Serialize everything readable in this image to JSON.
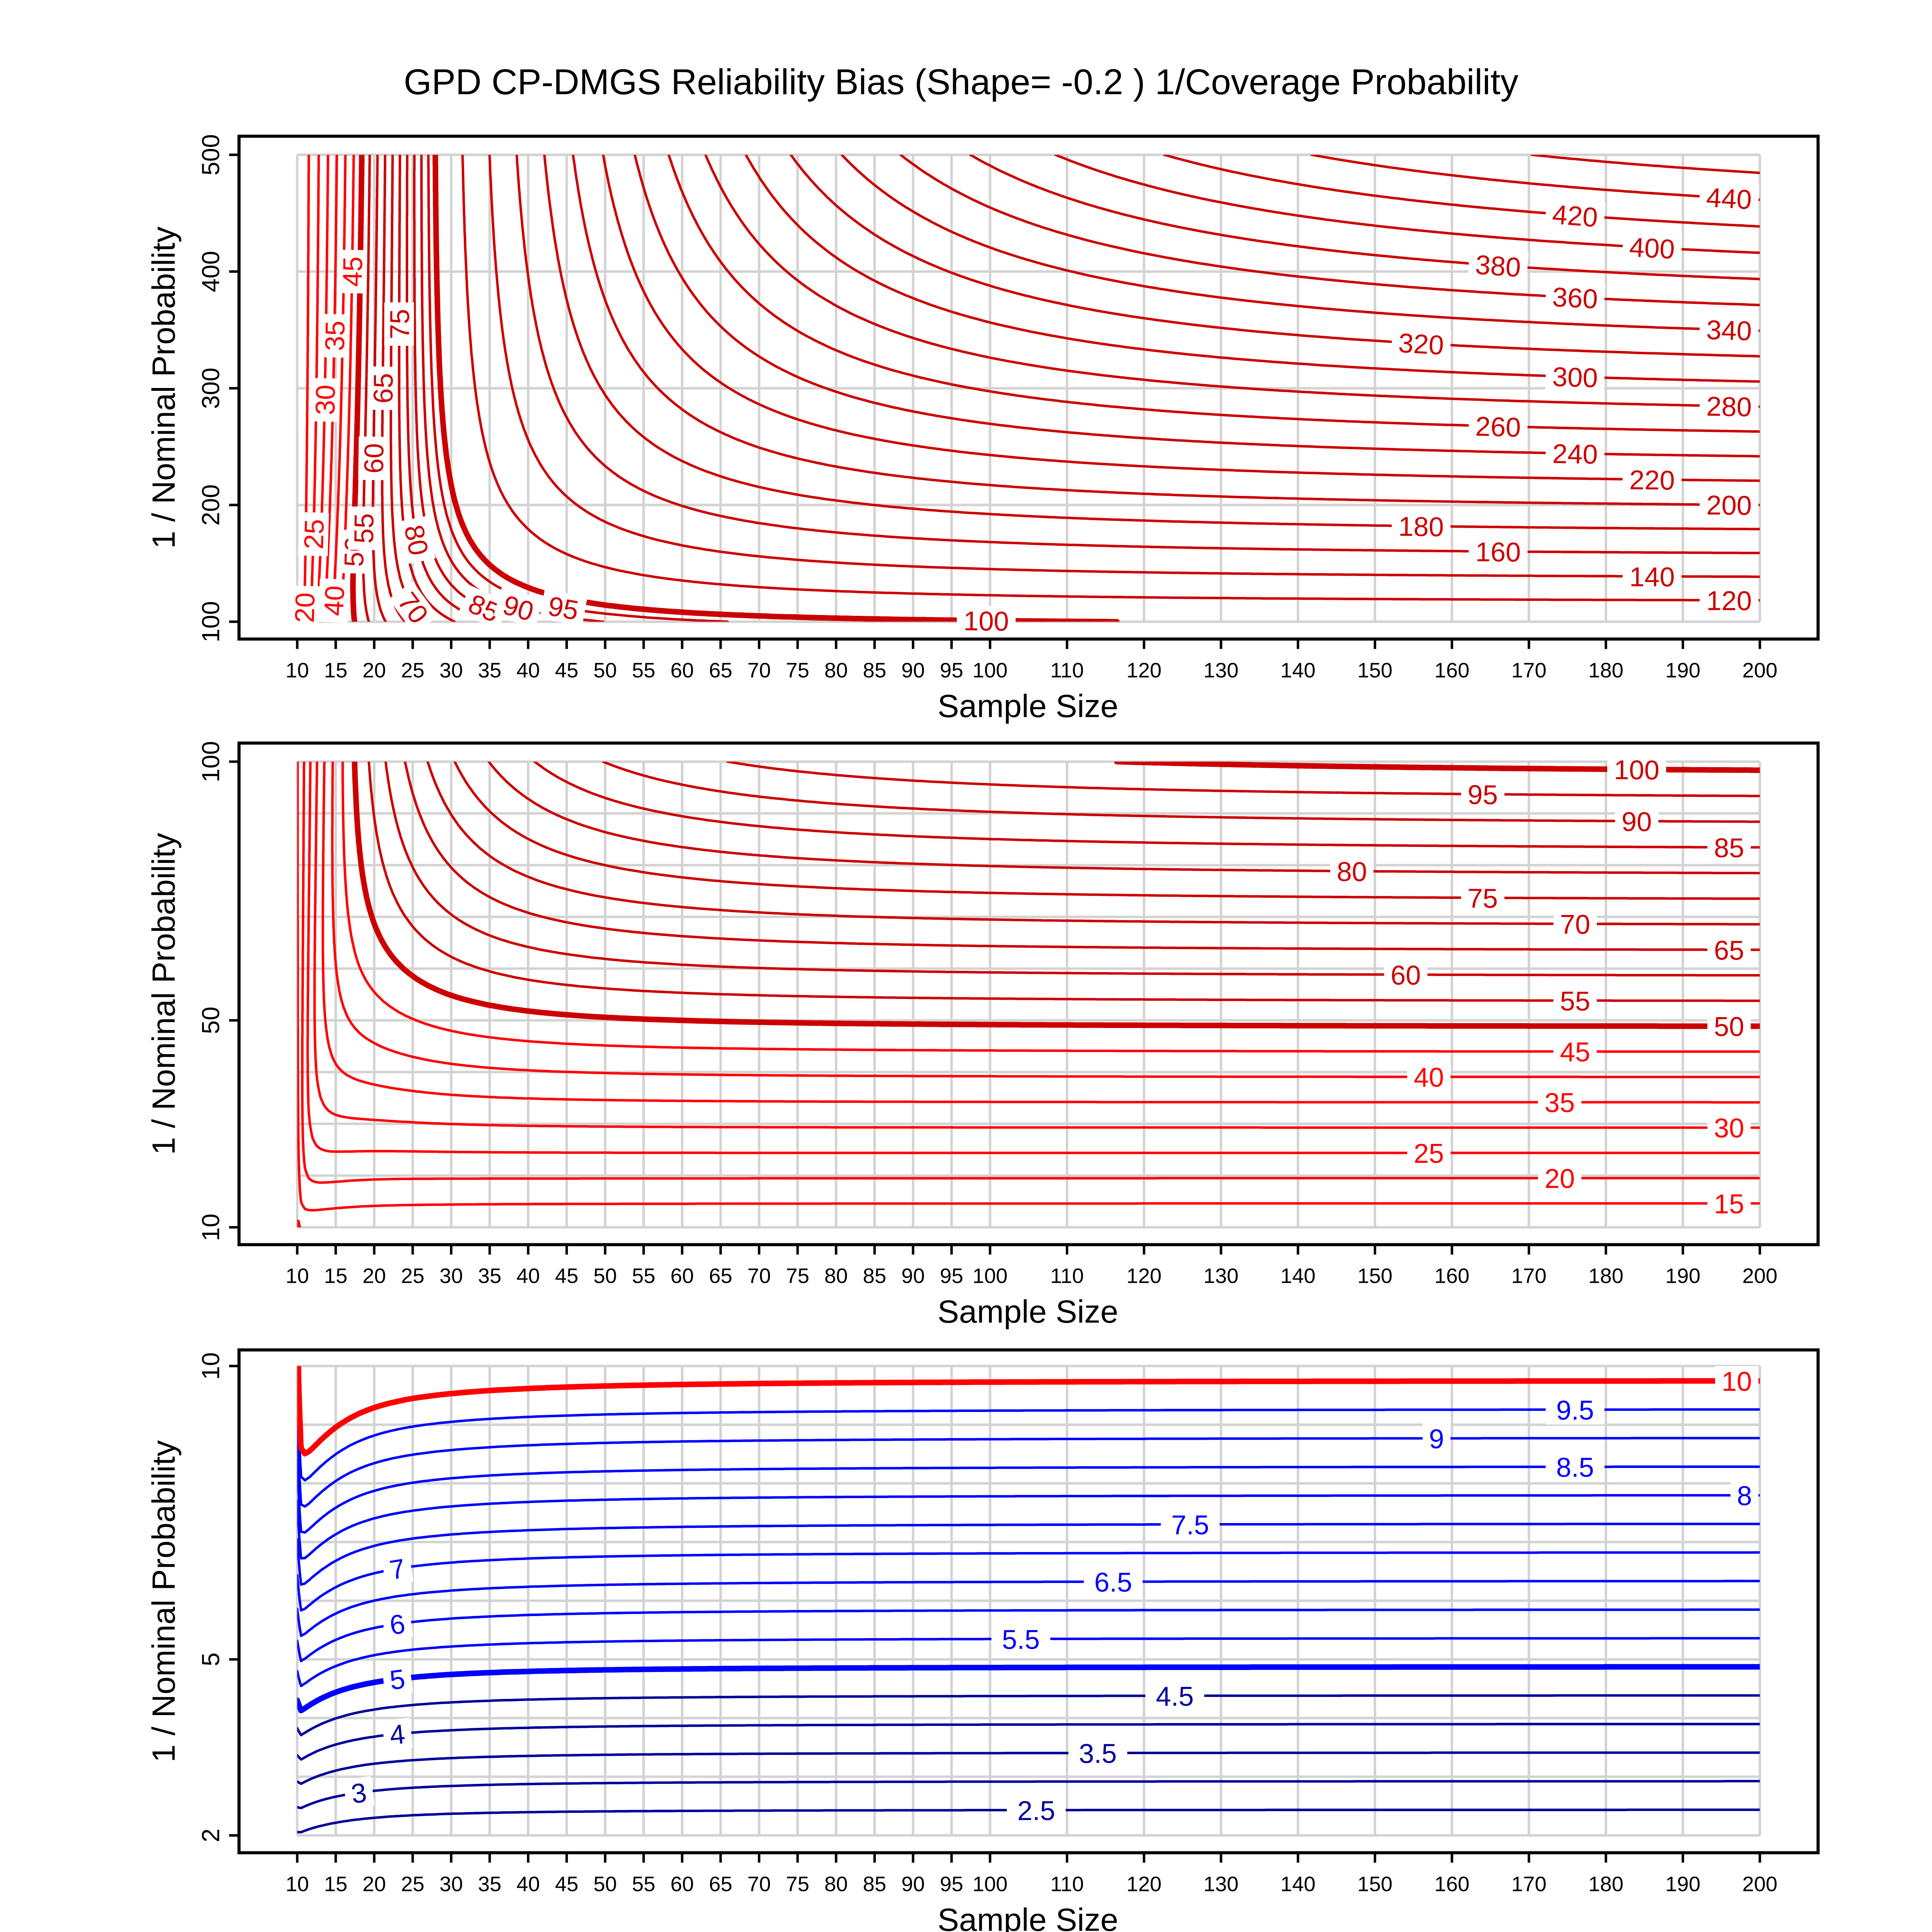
{
  "title": "GPD CP-DMGS Reliability Bias (Shape= -0.2 ) 1/Coverage Probability",
  "colors": {
    "grid": "#d3d3d3",
    "frame": "#000000",
    "label_background": "#ffffff"
  },
  "chart_data": [
    {
      "type": "contour",
      "xlabel": "Sample Size",
      "ylabel": "1 / Nominal Probability",
      "x_range": [
        10,
        200
      ],
      "y_range": [
        100,
        500
      ],
      "x_ticks": [
        "10",
        "15",
        "20",
        "25",
        "30",
        "35",
        "40",
        "45",
        "50",
        "55",
        "60",
        "65",
        "70",
        "75",
        "80",
        "85",
        "90",
        "95",
        "100",
        "110",
        "120",
        "130",
        "140",
        "150",
        "160",
        "170",
        "180",
        "190",
        "200"
      ],
      "y_ticks": [
        "100",
        "200",
        "300",
        "400",
        "500"
      ],
      "y_grid": [
        100,
        200,
        300,
        400,
        500
      ],
      "grid": true,
      "levels": [
        20,
        25,
        30,
        35,
        40,
        45,
        50,
        55,
        60,
        65,
        70,
        75,
        80,
        85,
        90,
        95,
        100,
        120,
        140,
        160,
        180,
        200,
        220,
        240,
        260,
        280,
        300,
        320,
        340,
        360,
        380,
        400,
        420,
        440,
        460
      ],
      "bold_levels": [
        50,
        100
      ],
      "color_bands": [
        {
          "from": 20,
          "to": 45,
          "color": "#ff0000"
        },
        {
          "from": 50,
          "to": 460,
          "color": "#cc0000"
        }
      ],
      "contour_labels": [
        "20",
        "25",
        "30",
        "35",
        "40",
        "45",
        "50",
        "55",
        "60",
        "65",
        "70",
        "75",
        "80",
        "85",
        "90",
        "95",
        "100",
        "120",
        "140",
        "160",
        "180",
        "200",
        "220",
        "240",
        "260",
        "280",
        "300",
        "320",
        "340",
        "360",
        "380",
        "400",
        "420",
        "440"
      ]
    },
    {
      "type": "contour",
      "xlabel": "Sample Size",
      "ylabel": "1 / Nominal Probability",
      "x_range": [
        10,
        200
      ],
      "y_range": [
        10,
        100
      ],
      "x_ticks": [
        "10",
        "15",
        "20",
        "25",
        "30",
        "35",
        "40",
        "45",
        "50",
        "55",
        "60",
        "65",
        "70",
        "75",
        "80",
        "85",
        "90",
        "95",
        "100",
        "110",
        "120",
        "130",
        "140",
        "150",
        "160",
        "170",
        "180",
        "190",
        "200"
      ],
      "y_ticks": [
        "10",
        "50",
        "100"
      ],
      "y_grid": [
        10,
        20,
        30,
        40,
        50,
        60,
        70,
        80,
        90,
        100
      ],
      "grid": true,
      "levels": [
        10,
        15,
        20,
        25,
        30,
        35,
        40,
        45,
        50,
        55,
        60,
        65,
        70,
        75,
        80,
        85,
        90,
        95,
        100
      ],
      "bold_levels": [
        10,
        50,
        100
      ],
      "color_bands": [
        {
          "from": 10,
          "to": 45,
          "color": "#ff0000"
        },
        {
          "from": 50,
          "to": 100,
          "color": "#cc0000"
        }
      ],
      "contour_labels": [
        "15",
        "20",
        "25",
        "30",
        "35",
        "40",
        "45",
        "50",
        "55",
        "60",
        "65",
        "70",
        "75",
        "80",
        "85",
        "90",
        "95",
        "100"
      ]
    },
    {
      "type": "contour",
      "xlabel": "Sample Size",
      "ylabel": "1 / Nominal Probability",
      "x_range": [
        10,
        200
      ],
      "y_range": [
        2,
        10
      ],
      "x_ticks": [
        "10",
        "15",
        "20",
        "25",
        "30",
        "35",
        "40",
        "45",
        "50",
        "55",
        "60",
        "65",
        "70",
        "75",
        "80",
        "85",
        "90",
        "95",
        "100",
        "110",
        "120",
        "130",
        "140",
        "150",
        "160",
        "170",
        "180",
        "190",
        "200"
      ],
      "y_ticks": [
        "2",
        "5",
        "10"
      ],
      "y_grid": [
        2,
        3,
        4,
        5,
        6,
        7,
        8,
        9,
        10
      ],
      "grid": true,
      "levels": [
        2.5,
        3,
        3.5,
        4,
        4.5,
        5,
        5.5,
        6,
        6.5,
        7,
        7.5,
        8,
        8.5,
        9,
        9.5,
        10
      ],
      "bold_levels": [
        5,
        10
      ],
      "color_bands": [
        {
          "from": 2.5,
          "to": 4.5,
          "color": "#000099"
        },
        {
          "from": 5,
          "to": 9.5,
          "color": "#0000ff"
        },
        {
          "from": 10,
          "to": 10,
          "color": "#ff0000"
        }
      ],
      "contour_labels": [
        "10",
        "9.5",
        "9",
        "8.5",
        "8",
        "7.5",
        "7",
        "6.5",
        "6",
        "5.5",
        "5",
        "4.5",
        "4",
        "3.5",
        "3",
        "2.5"
      ]
    }
  ]
}
